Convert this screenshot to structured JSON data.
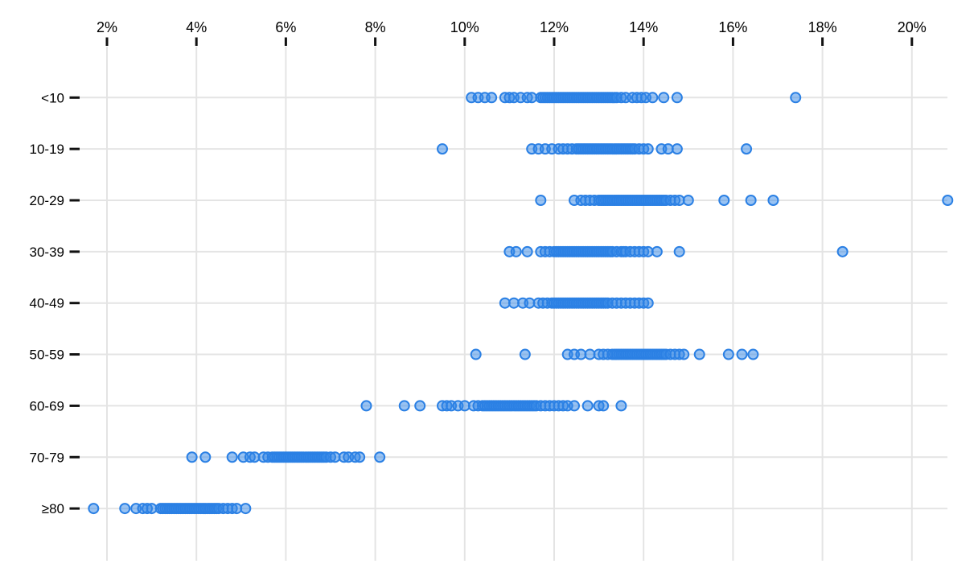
{
  "chart_data": {
    "type": "scatter",
    "variant": "strip-plot",
    "title": "",
    "xlabel": "",
    "ylabel": "",
    "x_axis_position": "top",
    "grid": true,
    "legend": "none",
    "x_ticks": [
      {
        "label": "2%",
        "value": 2
      },
      {
        "label": "4%",
        "value": 4
      },
      {
        "label": "6%",
        "value": 6
      },
      {
        "label": "8%",
        "value": 8
      },
      {
        "label": "10%",
        "value": 10
      },
      {
        "label": "12%",
        "value": 12
      },
      {
        "label": "14%",
        "value": 14
      },
      {
        "label": "16%",
        "value": 16
      },
      {
        "label": "18%",
        "value": 18
      },
      {
        "label": "20%",
        "value": 20
      }
    ],
    "xlim": [
      2,
      20
    ],
    "categories": [
      "<10",
      "10-19",
      "20-29",
      "30-39",
      "40-49",
      "50-59",
      "60-69",
      "70-79",
      "≥80"
    ],
    "series": [
      {
        "category": "<10",
        "values": [
          10.15,
          10.3,
          10.45,
          10.6,
          10.9,
          11.0,
          11.1,
          11.25,
          11.4,
          11.5,
          11.7,
          11.75,
          11.8,
          11.85,
          11.9,
          11.95,
          12.0,
          12.05,
          12.1,
          12.15,
          12.2,
          12.25,
          12.3,
          12.35,
          12.4,
          12.45,
          12.5,
          12.55,
          12.6,
          12.65,
          12.7,
          12.75,
          12.8,
          12.85,
          12.9,
          12.95,
          13.0,
          13.05,
          13.1,
          13.15,
          13.2,
          13.25,
          13.3,
          13.35,
          13.4,
          13.5,
          13.6,
          13.75,
          13.85,
          13.95,
          14.05,
          14.2,
          14.45,
          14.75,
          17.4
        ]
      },
      {
        "category": "10-19",
        "values": [
          9.5,
          11.5,
          11.65,
          11.8,
          11.95,
          12.1,
          12.2,
          12.3,
          12.4,
          12.5,
          12.55,
          12.6,
          12.65,
          12.7,
          12.75,
          12.8,
          12.85,
          12.9,
          12.95,
          13.0,
          13.05,
          13.1,
          13.15,
          13.2,
          13.25,
          13.3,
          13.35,
          13.4,
          13.45,
          13.5,
          13.55,
          13.6,
          13.65,
          13.7,
          13.75,
          13.8,
          13.9,
          14.0,
          14.1,
          14.4,
          14.55,
          14.75,
          16.3
        ]
      },
      {
        "category": "20-29",
        "values": [
          11.7,
          12.45,
          12.6,
          12.7,
          12.8,
          12.9,
          13.0,
          13.05,
          13.1,
          13.15,
          13.2,
          13.25,
          13.3,
          13.35,
          13.4,
          13.45,
          13.5,
          13.55,
          13.6,
          13.65,
          13.7,
          13.75,
          13.8,
          13.85,
          13.9,
          13.95,
          14.0,
          14.05,
          14.1,
          14.15,
          14.2,
          14.25,
          14.3,
          14.35,
          14.4,
          14.45,
          14.5,
          14.6,
          14.7,
          14.8,
          15.0,
          15.8,
          16.4,
          16.9,
          20.8
        ]
      },
      {
        "category": "30-39",
        "values": [
          11.0,
          11.15,
          11.4,
          11.7,
          11.8,
          11.9,
          12.0,
          12.05,
          12.1,
          12.15,
          12.2,
          12.25,
          12.3,
          12.35,
          12.4,
          12.45,
          12.5,
          12.55,
          12.6,
          12.65,
          12.7,
          12.75,
          12.8,
          12.85,
          12.9,
          12.95,
          13.0,
          13.05,
          13.1,
          13.15,
          13.2,
          13.25,
          13.3,
          13.4,
          13.5,
          13.55,
          13.6,
          13.7,
          13.8,
          13.9,
          14.0,
          14.1,
          14.3,
          14.8,
          18.45
        ]
      },
      {
        "category": "40-49",
        "values": [
          10.9,
          11.1,
          11.3,
          11.45,
          11.65,
          11.75,
          11.85,
          11.95,
          12.0,
          12.05,
          12.1,
          12.15,
          12.2,
          12.25,
          12.3,
          12.35,
          12.4,
          12.45,
          12.5,
          12.55,
          12.6,
          12.65,
          12.7,
          12.75,
          12.8,
          12.85,
          12.9,
          12.95,
          13.0,
          13.05,
          13.1,
          13.15,
          13.2,
          13.3,
          13.4,
          13.5,
          13.6,
          13.7,
          13.8,
          13.9,
          14.0,
          14.1
        ]
      },
      {
        "category": "50-59",
        "values": [
          10.25,
          11.35,
          12.3,
          12.45,
          12.6,
          12.8,
          13.0,
          13.1,
          13.2,
          13.3,
          13.35,
          13.4,
          13.45,
          13.5,
          13.55,
          13.6,
          13.65,
          13.7,
          13.75,
          13.8,
          13.85,
          13.9,
          13.95,
          14.0,
          14.05,
          14.1,
          14.15,
          14.2,
          14.25,
          14.3,
          14.35,
          14.4,
          14.45,
          14.5,
          14.6,
          14.7,
          14.8,
          14.9,
          15.25,
          15.9,
          16.2,
          16.45
        ]
      },
      {
        "category": "60-69",
        "values": [
          7.8,
          8.65,
          9.0,
          9.5,
          9.6,
          9.7,
          9.85,
          10.0,
          10.2,
          10.3,
          10.4,
          10.45,
          10.5,
          10.55,
          10.6,
          10.65,
          10.7,
          10.75,
          10.8,
          10.85,
          10.9,
          10.95,
          11.0,
          11.05,
          11.1,
          11.15,
          11.2,
          11.25,
          11.3,
          11.35,
          11.4,
          11.45,
          11.5,
          11.55,
          11.6,
          11.7,
          11.8,
          11.9,
          12.0,
          12.1,
          12.2,
          12.3,
          12.45,
          12.75,
          13.0,
          13.1,
          13.5
        ]
      },
      {
        "category": "70-79",
        "values": [
          3.9,
          4.2,
          4.8,
          5.05,
          5.2,
          5.3,
          5.5,
          5.6,
          5.7,
          5.75,
          5.8,
          5.85,
          5.9,
          5.95,
          6.0,
          6.05,
          6.1,
          6.15,
          6.2,
          6.25,
          6.3,
          6.35,
          6.4,
          6.45,
          6.5,
          6.55,
          6.6,
          6.65,
          6.7,
          6.75,
          6.8,
          6.85,
          6.9,
          7.0,
          7.1,
          7.3,
          7.4,
          7.55,
          7.65,
          8.1
        ]
      },
      {
        "category": "≥80",
        "values": [
          1.7,
          2.4,
          2.65,
          2.8,
          2.9,
          3.0,
          3.2,
          3.25,
          3.3,
          3.35,
          3.4,
          3.45,
          3.5,
          3.55,
          3.6,
          3.65,
          3.7,
          3.75,
          3.8,
          3.85,
          3.9,
          3.95,
          4.0,
          4.05,
          4.1,
          4.15,
          4.2,
          4.25,
          4.3,
          4.35,
          4.4,
          4.45,
          4.5,
          4.6,
          4.7,
          4.8,
          4.9,
          5.1
        ]
      }
    ]
  },
  "colors": {
    "background": "#ffffff",
    "gridline": "#e4e4e4",
    "tick": "#111111",
    "label": "#000000",
    "dot_fill": "#3388e8",
    "dot_stroke": "#2b80e4"
  }
}
